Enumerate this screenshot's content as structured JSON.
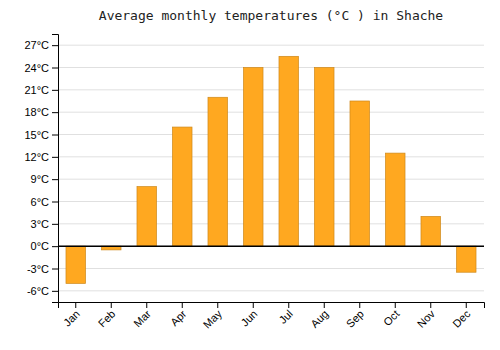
{
  "chart_data": {
    "type": "bar",
    "title": "Average monthly temperatures (°C ) in Shache",
    "categories": [
      "Jan",
      "Feb",
      "Mar",
      "Apr",
      "May",
      "Jun",
      "Jul",
      "Aug",
      "Sep",
      "Oct",
      "Nov",
      "Dec"
    ],
    "values": [
      -5.0,
      -0.5,
      8.0,
      16.0,
      20.0,
      24.0,
      25.5,
      24.0,
      19.5,
      12.5,
      4.0,
      -3.5
    ],
    "color": "#FFA820",
    "ylim": [
      -7.5,
      28.5
    ],
    "yticks": [
      {
        "value": -6,
        "label": "-6°C"
      },
      {
        "value": -3,
        "label": "-3°C"
      },
      {
        "value": 0,
        "label": "0°C"
      },
      {
        "value": 3,
        "label": "3°C"
      },
      {
        "value": 6,
        "label": "6°C"
      },
      {
        "value": 9,
        "label": "9°C"
      },
      {
        "value": 12,
        "label": "12°C"
      },
      {
        "value": 15,
        "label": "15°C"
      },
      {
        "value": 18,
        "label": "18°C"
      },
      {
        "value": 21,
        "label": "21°C"
      },
      {
        "value": 24,
        "label": "24°C"
      },
      {
        "value": 27,
        "label": "27°C"
      }
    ],
    "grid": true
  }
}
